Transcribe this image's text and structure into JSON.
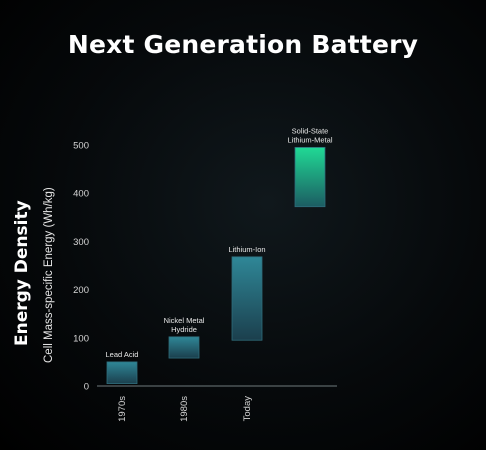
{
  "chart_data": {
    "type": "bar",
    "title": "Next Generation Battery",
    "ylabel_main": "Energy  Density",
    "ylabel": "Cell Mass-specific Energy (Wh/kg)",
    "xlabel": "",
    "ylim": [
      0,
      500
    ],
    "yticks": [
      0,
      100,
      200,
      300,
      400,
      500
    ],
    "categories": [
      "1970s",
      "1980s",
      "Today",
      ""
    ],
    "series": [
      {
        "values": [
          {
            "label": "Lead Acid",
            "low": 5,
            "high": 50
          },
          {
            "label": "Nickel Metal Hydride",
            "low": 58,
            "high": 102
          },
          {
            "label": "Lithium-Ion",
            "low": 95,
            "high": 268
          },
          {
            "label": "Solid-State Lithium-Metal",
            "low": 372,
            "high": 495
          }
        ]
      }
    ],
    "bar_label_lines": [
      [
        "Lead Acid"
      ],
      [
        "Nickel Metal",
        "Hydride"
      ],
      [
        "Lithium-Ion"
      ],
      [
        "Solid-State",
        "Lithium-Metal"
      ]
    ],
    "grid": false,
    "colors": {
      "bar_top_default": "#2f8797",
      "bar_bottom_default": "#1b3f4d",
      "bar_top_highlight": "#20d995",
      "bar_bottom_highlight": "#1c5c62",
      "bar_border": "#2f6d7b",
      "axis": "#6f7a7d"
    }
  }
}
